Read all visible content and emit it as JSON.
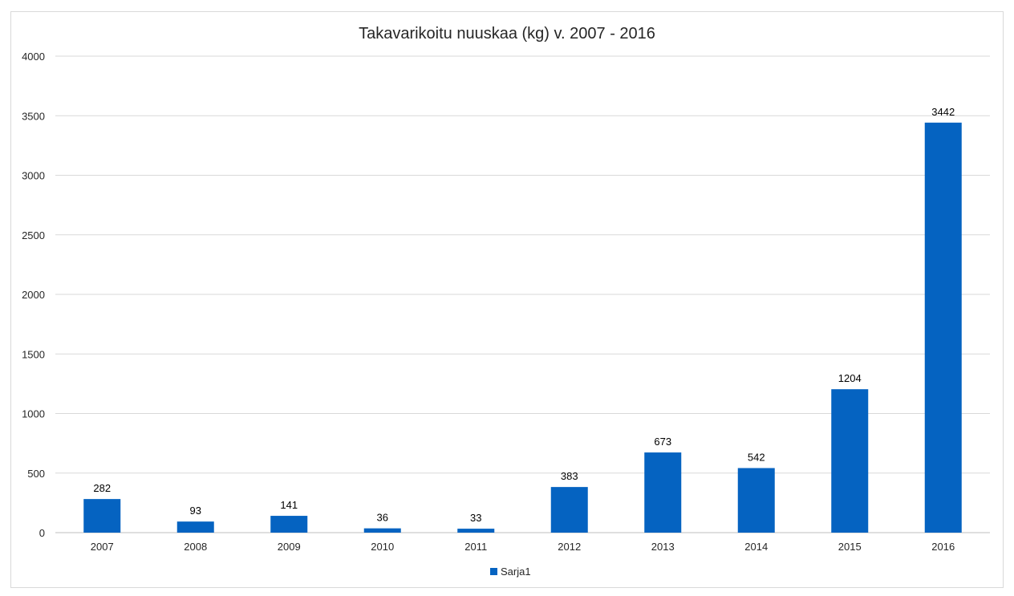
{
  "chart_data": {
    "type": "bar",
    "title": "Takavarikoitu nuuskaa (kg) v. 2007 - 2016",
    "xlabel": "",
    "ylabel": "",
    "categories": [
      "2007",
      "2008",
      "2009",
      "2010",
      "2011",
      "2012",
      "2013",
      "2014",
      "2015",
      "2016"
    ],
    "series": [
      {
        "name": "Sarja1",
        "values": [
          282,
          93,
          141,
          36,
          33,
          383,
          673,
          542,
          1204,
          3442
        ]
      }
    ],
    "ylim": [
      0,
      4000
    ],
    "yticks": [
      0,
      500,
      1000,
      1500,
      2000,
      2500,
      3000,
      3500,
      4000
    ],
    "grid": true,
    "data_labels": true,
    "legend_position": "bottom",
    "colors": {
      "bar": "#0563C1",
      "grid": "#d9d9d9",
      "axis": "#bfbfbf"
    }
  }
}
